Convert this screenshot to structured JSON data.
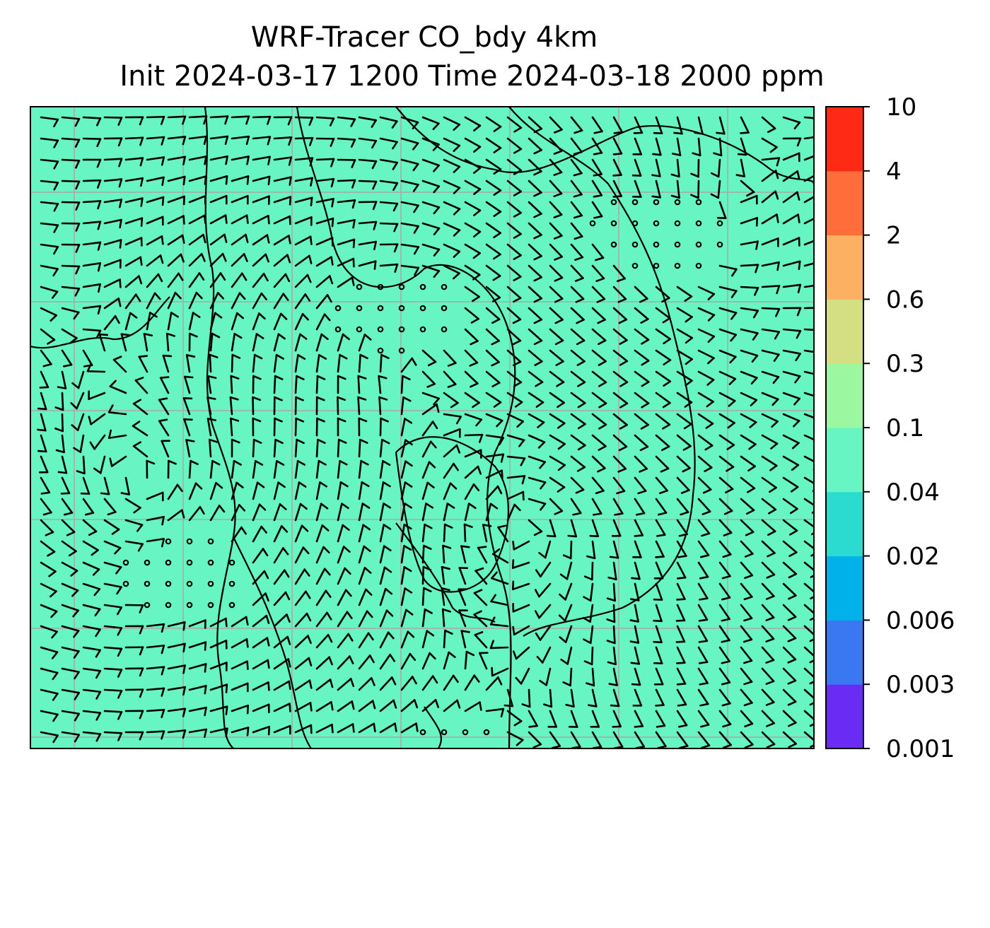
{
  "chart_data": {
    "type": "heatmap",
    "title_line1": "WRF-Tracer CO_bdy 4km",
    "title_line2": "Init 2024-03-17 1200 Time 2024-03-18 2000 ppm",
    "field_level": "0.04 – 0.1",
    "field_color": "#66f5c3",
    "grid": true,
    "overlays": [
      "coastlines",
      "wind barbs"
    ],
    "colorbar": {
      "orientation": "vertical",
      "placement": "right",
      "levels": [
        "0.001",
        "0.003",
        "0.006",
        "0.02",
        "0.04",
        "0.1",
        "0.3",
        "0.6",
        "2",
        "4",
        "10"
      ],
      "colors": [
        "#6a2cf5",
        "#3a78f2",
        "#00b1ea",
        "#2cdbd0",
        "#66f5c3",
        "#9bf8a0",
        "#d4de82",
        "#fcb162",
        "#ff6e3a",
        "#ff2a16"
      ]
    }
  }
}
